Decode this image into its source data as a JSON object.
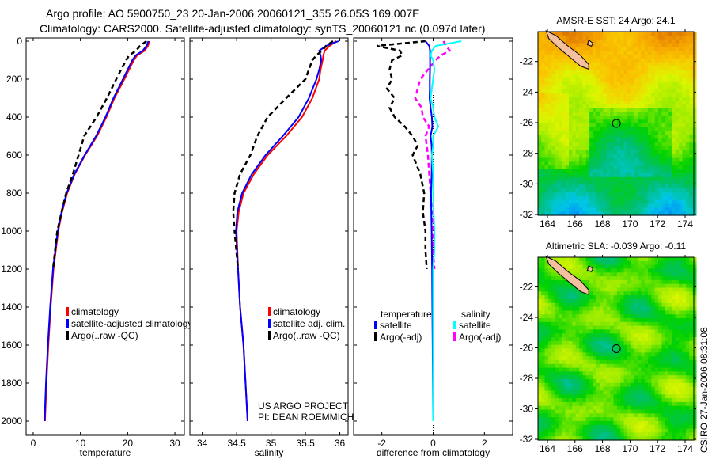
{
  "title": {
    "line1": "Argo profile: AO 5900750_23 20-Jan-2006 20060121_355 26.05S 169.007E",
    "line2": "Climatology: CARS2000. Satellite-adjusted climatology: synTS_20060121.nc (0.097d later)"
  },
  "footer": {
    "project": "US ARGO PROJECT",
    "pi": "PI: DEAN ROEMMICH"
  },
  "timestamp": "CSIRO 27-Jan-2006 08:31:08",
  "chart_data": [
    {
      "type": "line",
      "id": "temperature",
      "xlabel": "temperature",
      "ylabel": "",
      "xlim": [
        -1.5,
        32
      ],
      "ylim": [
        2000,
        0
      ],
      "xticks": [
        0,
        10,
        20,
        30
      ],
      "yticks": [
        0,
        200,
        400,
        600,
        800,
        1000,
        1200,
        1400,
        1600,
        1800,
        2000
      ],
      "depth": [
        0,
        25,
        50,
        75,
        100,
        150,
        200,
        300,
        400,
        500,
        600,
        700,
        800,
        900,
        1000,
        1200,
        1400,
        1600,
        1800,
        2000
      ],
      "series": [
        {
          "name": "climatology",
          "color": "#ff0000",
          "dash": "",
          "values": [
            24.6,
            24.3,
            23.6,
            22.0,
            21.3,
            20.3,
            19.3,
            17.2,
            15.5,
            13.5,
            11.0,
            8.8,
            7.2,
            6.1,
            5.3,
            4.3,
            3.7,
            3.2,
            2.8,
            2.5
          ]
        },
        {
          "name": "satellite-adjusted climatology",
          "color": "#0000ff",
          "dash": "",
          "values": [
            24.4,
            24.0,
            23.2,
            21.7,
            21.0,
            20.0,
            19.0,
            17.0,
            15.3,
            13.3,
            10.9,
            8.7,
            7.1,
            6.0,
            5.2,
            4.2,
            3.6,
            3.1,
            2.7,
            2.4
          ]
        },
        {
          "name": "Argo(..raw -QC)",
          "color": "#000000",
          "dash": "6,4",
          "values": [
            24.0,
            22.6,
            21.8,
            20.3,
            19.7,
            18.6,
            17.6,
            15.6,
            13.4,
            10.8,
            9.6,
            8.4,
            7.0,
            6.0,
            5.1,
            4.2
          ]
        }
      ]
    },
    {
      "type": "line",
      "id": "salinity",
      "xlabel": "salinity",
      "ylabel": "",
      "xlim": [
        33.82,
        36.12
      ],
      "ylim": [
        2000,
        0
      ],
      "xticks": [
        34,
        34.5,
        35,
        35.5,
        36
      ],
      "depth": [
        0,
        25,
        50,
        75,
        100,
        150,
        200,
        300,
        400,
        500,
        600,
        700,
        800,
        900,
        1000,
        1200,
        1400,
        1600,
        1800,
        2000
      ],
      "series": [
        {
          "name": "climatology",
          "color": "#ff0000",
          "dash": "",
          "values": [
            35.95,
            35.85,
            35.78,
            35.76,
            35.75,
            35.72,
            35.7,
            35.6,
            35.45,
            35.22,
            34.95,
            34.75,
            34.6,
            34.53,
            34.5,
            34.52,
            34.55,
            34.6,
            34.63,
            34.66
          ]
        },
        {
          "name": "satellite adj. clim.",
          "color": "#0000ff",
          "dash": "",
          "values": [
            35.98,
            35.8,
            35.7,
            35.72,
            35.73,
            35.7,
            35.66,
            35.55,
            35.4,
            35.17,
            34.92,
            34.72,
            34.58,
            34.51,
            34.49,
            34.52,
            34.55,
            34.6,
            34.63,
            34.66
          ]
        },
        {
          "name": "Argo(..raw -QC)",
          "color": "#000000",
          "dash": "6,4",
          "values": [
            35.9,
            35.8,
            35.74,
            35.66,
            35.6,
            35.55,
            35.5,
            35.22,
            34.95,
            34.8,
            34.7,
            34.55,
            34.47,
            34.45,
            34.47,
            34.52
          ]
        }
      ]
    },
    {
      "type": "line",
      "id": "difference",
      "xlabel": "difference from climatology",
      "ylabel": "",
      "xlim": [
        -3.1,
        3.1
      ],
      "ylim": [
        2000,
        0
      ],
      "xticks": [
        -2,
        0,
        2
      ],
      "depth": [
        0,
        25,
        50,
        75,
        100,
        150,
        200,
        250,
        300,
        350,
        400,
        450,
        500,
        550,
        600,
        700,
        800,
        900,
        1000,
        1100,
        1200,
        1400,
        1600,
        1800,
        2000
      ],
      "legend_headers": {
        "temperature": "temperature",
        "salinity": "salinity"
      },
      "series": [
        {
          "name": "satellite",
          "group": "temperature",
          "color": "#0000ff",
          "dash": "",
          "values": [
            -0.3,
            -0.15,
            -0.12,
            -0.12,
            -0.12,
            -0.12,
            -0.13,
            -0.13,
            -0.14,
            -0.1,
            -0.05,
            -0.03,
            -0.1,
            -0.06,
            -0.05,
            -0.06,
            -0.08,
            -0.07,
            -0.06,
            -0.05,
            -0.04,
            -0.03,
            -0.02,
            -0.01,
            0.0
          ]
        },
        {
          "name": "Argo(-adj)",
          "group": "temperature",
          "color": "#000000",
          "dash": "6,4",
          "values": [
            -0.3,
            -2.2,
            -1.3,
            -1.2,
            -1.6,
            -1.7,
            -1.6,
            -1.8,
            -1.5,
            -1.7,
            -1.5,
            -1.1,
            -0.8,
            -0.6,
            -0.8,
            -0.5,
            -0.35,
            -0.4,
            -0.3,
            -0.3,
            -0.25
          ]
        },
        {
          "name": "satellite",
          "group": "salinity",
          "color": "#00ffff",
          "dash": "",
          "values": [
            1.1,
            0.1,
            -0.05,
            -0.1,
            0.0,
            0.05,
            0.0,
            -0.05,
            -0.1,
            0.0,
            0.05,
            0.2,
            0.0,
            0.0,
            -0.05,
            0.0,
            0.0,
            0.02,
            0.05,
            0.05,
            0.0,
            0.0,
            0.0,
            0.0,
            0.0
          ]
        },
        {
          "name": "Argo(-adj)",
          "group": "salinity",
          "color": "#ff00ff",
          "dash": "6,4",
          "values": [
            0.4,
            0.5,
            0.65,
            0.3,
            0.1,
            -0.2,
            -0.5,
            -0.6,
            -0.7,
            -0.45,
            -0.4,
            -0.15,
            -0.3,
            -0.25,
            -0.2,
            -0.15,
            -0.1,
            -0.05,
            0.0,
            0.0,
            0.05
          ]
        }
      ]
    },
    {
      "type": "heatmap",
      "id": "sst-map",
      "title": "AMSR-E SST: 24 Argo: 24.1",
      "xlim": [
        163.3,
        174.6
      ],
      "ylim": [
        -32.05,
        -20.05
      ],
      "xticks": [
        164,
        166,
        168,
        170,
        172,
        174
      ],
      "yticks": [
        -22,
        -24,
        -26,
        -28,
        -30,
        -32
      ],
      "argo_position": {
        "lon": 169.007,
        "lat": -26.05
      }
    },
    {
      "type": "heatmap",
      "id": "sla-map",
      "title": "Altimetric SLA: -0.039 Argo: -0.11",
      "xlim": [
        163.3,
        174.6
      ],
      "ylim": [
        -32.05,
        -20.05
      ],
      "xticks": [
        164,
        166,
        168,
        170,
        172,
        174
      ],
      "yticks": [
        -22,
        -24,
        -26,
        -28,
        -30,
        -32
      ],
      "argo_position": {
        "lon": 169.007,
        "lat": -26.05
      }
    }
  ]
}
